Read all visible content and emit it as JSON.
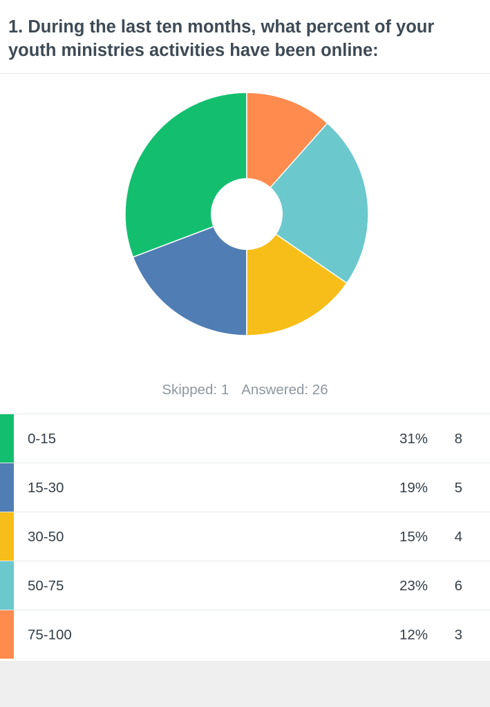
{
  "question": {
    "title": "1. During the last ten months, what percent of your youth ministries activities have been online:"
  },
  "summary": {
    "skipped": "Skipped: 1",
    "answered": "Answered: 26"
  },
  "colors": {
    "green": "#13bf6f",
    "blue": "#507db3",
    "yellow": "#f7be19",
    "teal": "#6bc8cd",
    "orange": "#ff8b4f"
  },
  "rows": [
    {
      "label": "0-15",
      "percent": "31%",
      "count": "8",
      "color": "#13bf6f"
    },
    {
      "label": "15-30",
      "percent": "19%",
      "count": "5",
      "color": "#507db3"
    },
    {
      "label": "30-50",
      "percent": "15%",
      "count": "4",
      "color": "#f7be19"
    },
    {
      "label": "50-75",
      "percent": "23%",
      "count": "6",
      "color": "#6bc8cd"
    },
    {
      "label": "75-100",
      "percent": "12%",
      "count": "3",
      "color": "#ff8b4f"
    }
  ],
  "chart_data": {
    "type": "pie",
    "donut": true,
    "categories": [
      "0-15",
      "15-30",
      "30-50",
      "50-75",
      "75-100"
    ],
    "values": [
      8,
      5,
      4,
      6,
      3
    ],
    "percentages": [
      31,
      19,
      15,
      23,
      12
    ],
    "colors": [
      "#13bf6f",
      "#507db3",
      "#f7be19",
      "#6bc8cd",
      "#ff8b4f"
    ],
    "direction": "counterclockwise from top",
    "title": "",
    "legend": "table below chart"
  }
}
